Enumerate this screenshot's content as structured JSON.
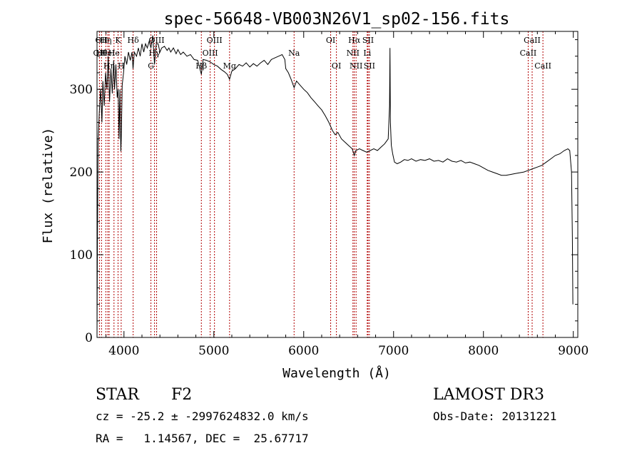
{
  "chart_data": {
    "type": "line",
    "title": "spec-56648-VB003N26V1_sp02-156.fits",
    "xlabel": "Wavelength (Å)",
    "ylabel": "Flux (relative)",
    "xlim": [
      3700,
      9050
    ],
    "ylim": [
      0,
      370
    ],
    "x_ticks": [
      4000,
      5000,
      6000,
      7000,
      8000,
      9000
    ],
    "y_ticks": [
      0,
      100,
      200,
      300
    ],
    "grid": false,
    "legend": "none",
    "series": [
      {
        "points": [
          [
            3700,
            0
          ],
          [
            3705,
            120
          ],
          [
            3712,
            235
          ],
          [
            3725,
            270
          ],
          [
            3740,
            300
          ],
          [
            3755,
            260
          ],
          [
            3765,
            310
          ],
          [
            3780,
            280
          ],
          [
            3795,
            320
          ],
          [
            3810,
            300
          ],
          [
            3825,
            340
          ],
          [
            3840,
            285
          ],
          [
            3855,
            325
          ],
          [
            3870,
            295
          ],
          [
            3885,
            335
          ],
          [
            3895,
            300
          ],
          [
            3910,
            330
          ],
          [
            3925,
            290
          ],
          [
            3935,
            300
          ],
          [
            3945,
            240
          ],
          [
            3955,
            300
          ],
          [
            3965,
            225
          ],
          [
            3970,
            240
          ],
          [
            3980,
            305
          ],
          [
            3995,
            320
          ],
          [
            4010,
            340
          ],
          [
            4030,
            330
          ],
          [
            4050,
            345
          ],
          [
            4070,
            335
          ],
          [
            4090,
            345
          ],
          [
            4101,
            325
          ],
          [
            4115,
            345
          ],
          [
            4140,
            340
          ],
          [
            4160,
            350
          ],
          [
            4180,
            340
          ],
          [
            4200,
            355
          ],
          [
            4220,
            345
          ],
          [
            4240,
            355
          ],
          [
            4260,
            350
          ],
          [
            4280,
            358
          ],
          [
            4300,
            350
          ],
          [
            4320,
            365
          ],
          [
            4340,
            330
          ],
          [
            4360,
            355
          ],
          [
            4380,
            355
          ],
          [
            4400,
            345
          ],
          [
            4420,
            350
          ],
          [
            4450,
            352
          ],
          [
            4480,
            347
          ],
          [
            4500,
            350
          ],
          [
            4520,
            345
          ],
          [
            4550,
            350
          ],
          [
            4580,
            343
          ],
          [
            4600,
            348
          ],
          [
            4630,
            342
          ],
          [
            4660,
            345
          ],
          [
            4700,
            340
          ],
          [
            4740,
            342
          ],
          [
            4780,
            336
          ],
          [
            4820,
            335
          ],
          [
            4861,
            318
          ],
          [
            4880,
            336
          ],
          [
            4920,
            335
          ],
          [
            4960,
            333
          ],
          [
            5000,
            330
          ],
          [
            5040,
            328
          ],
          [
            5080,
            324
          ],
          [
            5120,
            321
          ],
          [
            5150,
            318
          ],
          [
            5175,
            312
          ],
          [
            5200,
            322
          ],
          [
            5240,
            325
          ],
          [
            5280,
            330
          ],
          [
            5320,
            328
          ],
          [
            5360,
            332
          ],
          [
            5400,
            327
          ],
          [
            5440,
            331
          ],
          [
            5480,
            328
          ],
          [
            5520,
            332
          ],
          [
            5560,
            335
          ],
          [
            5600,
            330
          ],
          [
            5640,
            336
          ],
          [
            5680,
            338
          ],
          [
            5720,
            340
          ],
          [
            5760,
            342
          ],
          [
            5790,
            336
          ],
          [
            5800,
            325
          ],
          [
            5830,
            320
          ],
          [
            5860,
            312
          ],
          [
            5893,
            302
          ],
          [
            5920,
            310
          ],
          [
            5960,
            305
          ],
          [
            6000,
            300
          ],
          [
            6040,
            296
          ],
          [
            6080,
            290
          ],
          [
            6120,
            285
          ],
          [
            6160,
            280
          ],
          [
            6200,
            275
          ],
          [
            6240,
            268
          ],
          [
            6280,
            260
          ],
          [
            6320,
            250
          ],
          [
            6350,
            245
          ],
          [
            6380,
            248
          ],
          [
            6420,
            240
          ],
          [
            6460,
            236
          ],
          [
            6500,
            232
          ],
          [
            6540,
            228
          ],
          [
            6563,
            220
          ],
          [
            6580,
            226
          ],
          [
            6620,
            228
          ],
          [
            6660,
            226
          ],
          [
            6700,
            224
          ],
          [
            6740,
            226
          ],
          [
            6780,
            228
          ],
          [
            6820,
            226
          ],
          [
            6860,
            230
          ],
          [
            6900,
            234
          ],
          [
            6940,
            240
          ],
          [
            6955,
            280
          ],
          [
            6960,
            350
          ],
          [
            6965,
            260
          ],
          [
            6975,
            232
          ],
          [
            6990,
            222
          ],
          [
            7010,
            212
          ],
          [
            7040,
            210
          ],
          [
            7080,
            212
          ],
          [
            7120,
            215
          ],
          [
            7160,
            214
          ],
          [
            7200,
            216
          ],
          [
            7250,
            213
          ],
          [
            7300,
            215
          ],
          [
            7350,
            214
          ],
          [
            7400,
            216
          ],
          [
            7450,
            213
          ],
          [
            7500,
            214
          ],
          [
            7550,
            212
          ],
          [
            7600,
            216
          ],
          [
            7650,
            213
          ],
          [
            7700,
            212
          ],
          [
            7750,
            214
          ],
          [
            7800,
            211
          ],
          [
            7850,
            212
          ],
          [
            7900,
            210
          ],
          [
            7950,
            208
          ],
          [
            8000,
            205
          ],
          [
            8050,
            202
          ],
          [
            8100,
            200
          ],
          [
            8150,
            198
          ],
          [
            8200,
            196
          ],
          [
            8250,
            196
          ],
          [
            8300,
            197
          ],
          [
            8350,
            198
          ],
          [
            8400,
            199
          ],
          [
            8450,
            200
          ],
          [
            8500,
            202
          ],
          [
            8550,
            204
          ],
          [
            8600,
            206
          ],
          [
            8650,
            208
          ],
          [
            8700,
            212
          ],
          [
            8750,
            216
          ],
          [
            8800,
            220
          ],
          [
            8850,
            222
          ],
          [
            8900,
            226
          ],
          [
            8940,
            228
          ],
          [
            8960,
            226
          ],
          [
            8980,
            200
          ],
          [
            8990,
            120
          ],
          [
            8995,
            40
          ]
        ]
      }
    ],
    "lines": [
      {
        "x": 3727,
        "labels": [
          "OII"
        ],
        "row": 1
      },
      {
        "x": 3750,
        "labels": [
          "OII",
          "Hθ"
        ],
        "row": 0
      },
      {
        "x": 3798,
        "labels": [
          "Hη"
        ],
        "row": 0
      },
      {
        "x": 3820,
        "labels": [
          "HeI"
        ],
        "row": 1
      },
      {
        "x": 3835,
        "labels": [
          "Hη"
        ],
        "row": 2
      },
      {
        "x": 3889,
        "labels": [
          "He"
        ],
        "row": 1
      },
      {
        "x": 3934,
        "labels": [
          "K"
        ],
        "row": 0
      },
      {
        "x": 3969,
        "labels": [
          "H"
        ],
        "row": 2
      },
      {
        "x": 4102,
        "labels": [
          "Hδ"
        ],
        "row": 0
      },
      {
        "x": 4300,
        "labels": [
          "G"
        ],
        "row": 2
      },
      {
        "x": 4340,
        "labels": [
          "Hγ"
        ],
        "row": 1
      },
      {
        "x": 4363,
        "labels": [
          "OIII"
        ],
        "row": 0
      },
      {
        "x": 4861,
        "labels": [
          "Hβ"
        ],
        "row": 2
      },
      {
        "x": 4959,
        "labels": [
          "OIII"
        ],
        "row": 1
      },
      {
        "x": 5007,
        "labels": [
          "OIII"
        ],
        "row": 0
      },
      {
        "x": 5175,
        "labels": [
          "Mg"
        ],
        "row": 2
      },
      {
        "x": 5893,
        "labels": [
          "Na"
        ],
        "row": 1
      },
      {
        "x": 6300,
        "labels": [
          "OI"
        ],
        "row": 0
      },
      {
        "x": 6364,
        "labels": [
          "OI"
        ],
        "row": 2
      },
      {
        "x": 6548,
        "labels": [
          "NII"
        ],
        "row": 1
      },
      {
        "x": 6563,
        "labels": [
          "Hα"
        ],
        "row": 0
      },
      {
        "x": 6583,
        "labels": [
          "NII"
        ],
        "row": 2
      },
      {
        "x": 6707,
        "labels": [
          "Li"
        ],
        "row": 1
      },
      {
        "x": 6716,
        "labels": [
          "SII"
        ],
        "row": 0
      },
      {
        "x": 6731,
        "labels": [
          "SII"
        ],
        "row": 2
      },
      {
        "x": 8498,
        "labels": [
          "CaII"
        ],
        "row": 1
      },
      {
        "x": 8542,
        "labels": [
          "CaII"
        ],
        "row": 0
      },
      {
        "x": 8662,
        "labels": [
          "CaII"
        ],
        "row": 2
      }
    ]
  },
  "info": {
    "class": "STAR",
    "subclass": "F2",
    "survey": "LAMOST DR3",
    "cz": "cz = -25.2 ± -2997624832.0 km/s",
    "obs_date": "Obs-Date: 20131221",
    "radec": "RA =   1.14567, DEC =  25.67717"
  },
  "colors": {
    "line_marker": "#b00000",
    "spectrum": "#000000"
  }
}
